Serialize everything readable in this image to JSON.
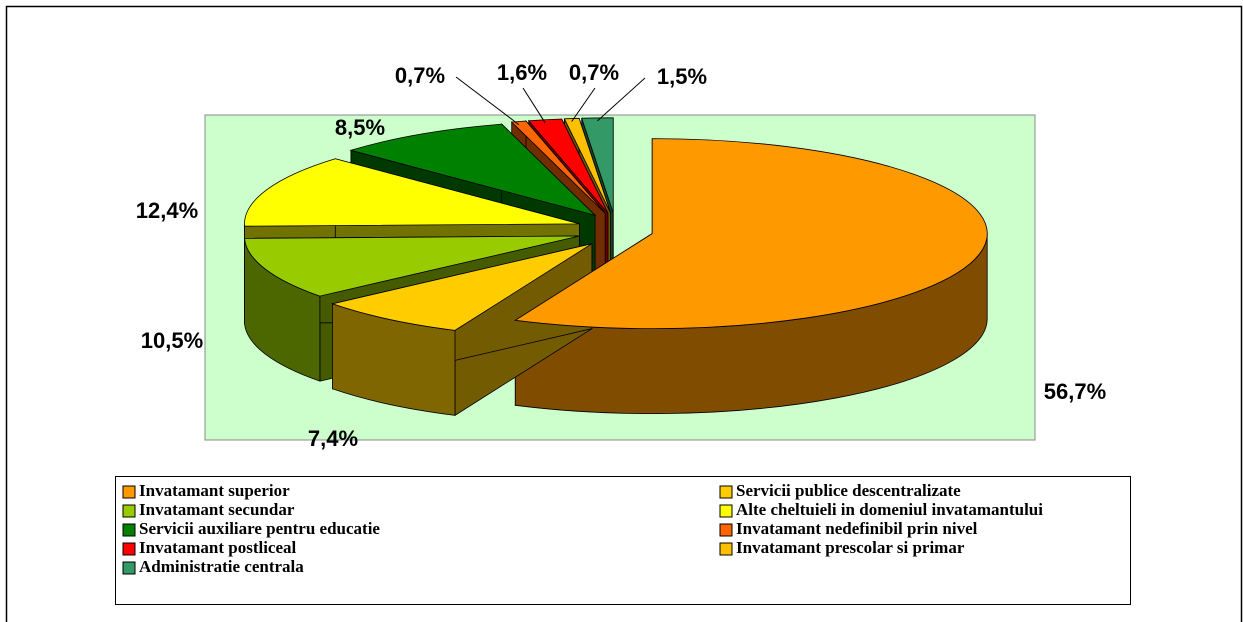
{
  "chart_data": {
    "type": "pie3d",
    "categories": [
      "Invatamant superior",
      "Servicii publice descentralizate",
      "Invatamant secundar",
      "Alte cheltuieli in domeniul invatamantului",
      "Servicii auxiliare pentru educatie",
      "Invatamant nedefinibil prin nivel",
      "Invatamant postliceal",
      "Invatamant prescolar si primar",
      "Administratie centrala"
    ],
    "values": [
      56.7,
      7.4,
      10.5,
      12.4,
      8.5,
      0.7,
      1.6,
      0.7,
      1.5
    ],
    "value_labels": [
      "56,7%",
      "7,4%",
      "10,5%",
      "12,4%",
      "8,5%",
      "0,7%",
      "1,6%",
      "0,7%",
      "1,5%"
    ],
    "colors": [
      "#FF9900",
      "#FFCC00",
      "#99CC00",
      "#FFFF00",
      "#008000",
      "#FF6600",
      "#FF0000",
      "#FFC000",
      "#339966"
    ],
    "legend": "bottom"
  }
}
